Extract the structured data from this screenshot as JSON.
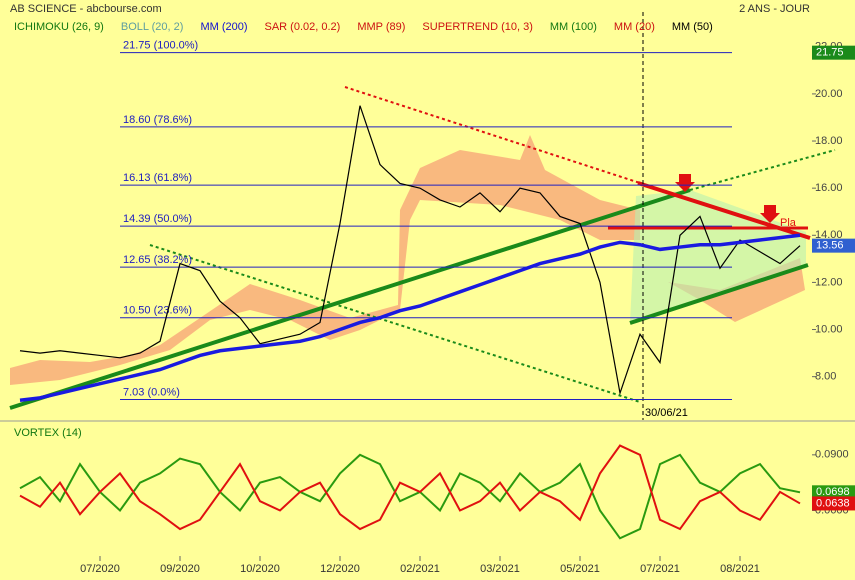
{
  "chart_data": [
    {
      "type": "line",
      "title": "AB SCIENCE - abcbourse.com",
      "subtitle": "2 ANS - JOUR",
      "legend": [
        {
          "name": "ICHIMOKU (26, 9)",
          "color": "#117711"
        },
        {
          "name": "BOLL (20, 2)",
          "color": "#5f9ea0"
        },
        {
          "name": "MM (200)",
          "color": "#1010d0"
        },
        {
          "name": "SAR (0.02, 0.2)",
          "color": "#cc1111"
        },
        {
          "name": "MMP (89)",
          "color": "#cc1111"
        },
        {
          "name": "SUPERTREND (10, 3)",
          "color": "#cc1111"
        },
        {
          "name": "MM (100)",
          "color": "#117711"
        },
        {
          "name": "MM (20)",
          "color": "#cc1111"
        },
        {
          "name": "MM (50)",
          "color": "#000000"
        }
      ],
      "categories": [
        null,
        null,
        null,
        null,
        "07/2020",
        null,
        null,
        null,
        "09/2020",
        null,
        null,
        null,
        "10/2020",
        null,
        null,
        null,
        "12/2020",
        null,
        null,
        null,
        "02/2021",
        null,
        null,
        null,
        "03/2021",
        null,
        null,
        null,
        "05/2021",
        null,
        null,
        null,
        "07/2021",
        null,
        null,
        null,
        "08/2021",
        null,
        null,
        null
      ],
      "series": [
        {
          "color": "#000000",
          "values": [
            9.1,
            9.0,
            9.1,
            9.0,
            8.9,
            8.8,
            9.0,
            9.5,
            12.8,
            12.5,
            11.2,
            10.5,
            9.4,
            9.6,
            9.8,
            10.3,
            14.5,
            19.5,
            17.0,
            16.2,
            16.0,
            15.5,
            15.2,
            15.8,
            15.0,
            16.0,
            15.8,
            14.8,
            14.5,
            12.0,
            7.3,
            9.8,
            8.6,
            14.0,
            14.8,
            12.6,
            13.8,
            13.3,
            12.8,
            13.56
          ]
        },
        {
          "color": "#1a1ae0",
          "values": [
            7.0,
            7.1,
            7.3,
            7.5,
            7.7,
            7.9,
            8.1,
            8.3,
            8.6,
            8.9,
            9.1,
            9.2,
            9.3,
            9.4,
            9.5,
            9.7,
            10.0,
            10.3,
            10.5,
            10.8,
            11.0,
            11.3,
            11.6,
            11.9,
            12.2,
            12.5,
            12.8,
            13.0,
            13.2,
            13.5,
            13.7,
            13.6,
            13.4,
            13.5,
            13.6,
            13.6,
            13.7,
            13.8,
            13.9,
            14.0
          ]
        }
      ],
      "fib_levels": [
        {
          "value": 21.75,
          "label": "21.75  (100.0%)"
        },
        {
          "value": 18.6,
          "label": "18.60  (78.6%)"
        },
        {
          "value": 16.13,
          "label": "16.13  (61.8%)"
        },
        {
          "value": 14.39,
          "label": "14.39  (50.0%)"
        },
        {
          "value": 12.65,
          "label": "12.65  (38.2%)"
        },
        {
          "value": 10.5,
          "label": "10.50  (23.6%)"
        },
        {
          "value": 7.03,
          "label": "7.03  (0.0%)"
        }
      ],
      "ylim": [
        6.5,
        22.5
      ],
      "yticks": [
        {
          "value": 8,
          "label": "8.00"
        },
        {
          "value": 10,
          "label": "10.00"
        },
        {
          "value": 12,
          "label": "12.00"
        },
        {
          "value": 14,
          "label": "14.00"
        },
        {
          "value": 16,
          "label": "16.00"
        },
        {
          "value": 18,
          "label": "18.00"
        },
        {
          "value": 20,
          "label": "20.00"
        },
        {
          "value": 22,
          "label": "22.00"
        }
      ],
      "annotations": [
        "30/06/21",
        "Pla"
      ]
    },
    {
      "type": "line",
      "title": "VORTEX (14)",
      "series": [
        {
          "color": "#2a9a10",
          "values": [
            0.072,
            0.078,
            0.065,
            0.085,
            0.07,
            0.06,
            0.075,
            0.08,
            0.088,
            0.085,
            0.07,
            0.06,
            0.075,
            0.078,
            0.07,
            0.065,
            0.08,
            0.09,
            0.085,
            0.065,
            0.07,
            0.06,
            0.08,
            0.075,
            0.065,
            0.08,
            0.07,
            0.075,
            0.085,
            0.06,
            0.045,
            0.05,
            0.085,
            0.09,
            0.075,
            0.07,
            0.08,
            0.085,
            0.072,
            0.0698
          ]
        },
        {
          "color": "#e01010",
          "values": [
            0.068,
            0.062,
            0.075,
            0.058,
            0.07,
            0.08,
            0.065,
            0.058,
            0.05,
            0.055,
            0.07,
            0.085,
            0.065,
            0.06,
            0.07,
            0.075,
            0.058,
            0.05,
            0.055,
            0.075,
            0.07,
            0.08,
            0.06,
            0.065,
            0.075,
            0.06,
            0.07,
            0.065,
            0.055,
            0.08,
            0.095,
            0.09,
            0.055,
            0.05,
            0.065,
            0.07,
            0.06,
            0.055,
            0.07,
            0.0638
          ]
        }
      ],
      "ylim": [
        0.036,
        0.098
      ],
      "yticks": [
        {
          "value": 0.06,
          "label": "0.0600"
        },
        {
          "value": 0.09,
          "label": "0.0900"
        }
      ]
    }
  ]
}
